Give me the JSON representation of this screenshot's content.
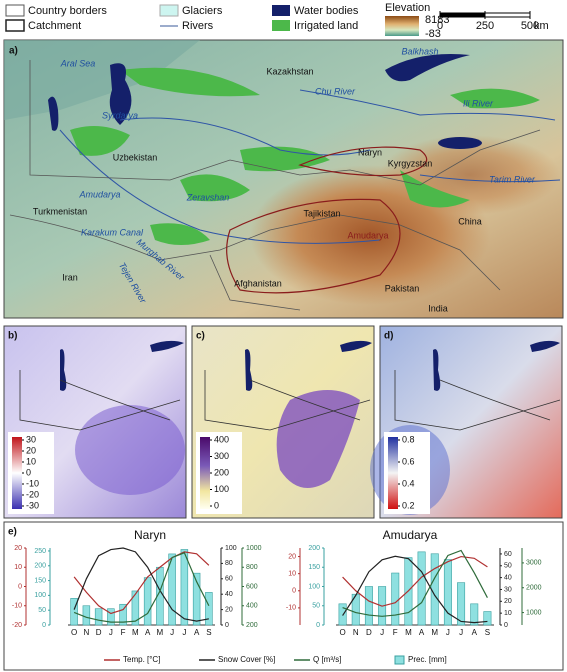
{
  "legend": {
    "items": [
      "Country borders",
      "Catchment",
      "Glaciers",
      "Rivers",
      "Water bodies",
      "Irrigated land"
    ],
    "elevation": {
      "title": "Elevation",
      "max": 8183,
      "min": -83
    },
    "scale": {
      "ticks": [
        0,
        250,
        500
      ],
      "unit": "km"
    }
  },
  "map_a": {
    "label": "a)",
    "places": [
      "Aral Sea",
      "Balkhash",
      "Kazakhstan",
      "Chu River",
      "Syrdarya",
      "Ili River",
      "Uzbekistan",
      "Naryn",
      "Kyrgyzstan",
      "Tarim River",
      "Amudarya",
      "Turkmenistan",
      "Zeravshan",
      "Tajikistan",
      "China",
      "Karakum Canal",
      "Amudarya",
      "Murghab River",
      "Tejen River",
      "Iran",
      "Afghanistan",
      "Pakistan",
      "India"
    ]
  },
  "map_b": {
    "label": "b)",
    "colorbar": [
      30,
      20,
      10,
      0,
      -10,
      -20,
      -30
    ]
  },
  "map_c": {
    "label": "c)",
    "colorbar": [
      400,
      300,
      200,
      100,
      0
    ]
  },
  "map_d": {
    "label": "d)",
    "colorbar": [
      0.8,
      0.6,
      0.4,
      0.2
    ]
  },
  "panel_e": {
    "label": "e)"
  },
  "chart_data": [
    {
      "type": "combo",
      "title": "Naryn",
      "categories": [
        "O",
        "N",
        "D",
        "J",
        "F",
        "M",
        "A",
        "M",
        "J",
        "J",
        "A",
        "S"
      ],
      "ylim": [
        -20,
        20
      ],
      "yticks": [
        -20,
        -10,
        0,
        10,
        20
      ],
      "y2lim": [
        0,
        260
      ],
      "y2ticks": [
        0,
        50,
        100,
        150,
        200,
        250
      ],
      "y3lim": [
        0,
        100
      ],
      "y3ticks": [
        0,
        20,
        40,
        60,
        80,
        100
      ],
      "y4lim": [
        200,
        1000
      ],
      "y4ticks": [
        200,
        400,
        600,
        800,
        1000
      ],
      "series": [
        {
          "name": "Temp. [°C]",
          "type": "line",
          "axis": "y",
          "color": "#b03030",
          "values": [
            5,
            -3,
            -10,
            -14,
            -12,
            -4,
            5,
            10,
            15,
            18,
            17,
            11
          ]
        },
        {
          "name": "Snow Cover [%]",
          "type": "line",
          "axis": "y3",
          "color": "#222222",
          "values": [
            20,
            60,
            90,
            98,
            100,
            95,
            75,
            45,
            20,
            8,
            5,
            8
          ]
        },
        {
          "name": "Q [m³/s]",
          "type": "line",
          "axis": "y4",
          "color": "#2f6b3a",
          "values": [
            330,
            280,
            250,
            230,
            230,
            240,
            320,
            550,
            900,
            950,
            650,
            400
          ]
        },
        {
          "name": "Prec. [mm]",
          "type": "bar",
          "axis": "y2",
          "color": "#8ee0e0",
          "values": [
            90,
            65,
            55,
            55,
            70,
            115,
            160,
            195,
            240,
            255,
            175,
            110
          ]
        }
      ]
    },
    {
      "type": "combo",
      "title": "Amudarya",
      "categories": [
        "O",
        "N",
        "D",
        "J",
        "F",
        "M",
        "A",
        "M",
        "J",
        "J",
        "A",
        "S"
      ],
      "ylim": [
        -20,
        25
      ],
      "yticks": [
        -10,
        0,
        10,
        20
      ],
      "y2lim": [
        0,
        200
      ],
      "y2ticks": [
        0,
        50,
        100,
        150,
        200
      ],
      "y3lim": [
        0,
        65
      ],
      "y3ticks": [
        0,
        10,
        20,
        30,
        40,
        50,
        60
      ],
      "y4lim": [
        500,
        3600
      ],
      "y4ticks": [
        1000,
        2000,
        3000
      ],
      "series": [
        {
          "name": "Temp. [°C]",
          "type": "line",
          "axis": "y",
          "color": "#b03030",
          "values": [
            8,
            0,
            -6,
            -9,
            -7,
            0,
            8,
            13,
            17,
            20,
            19,
            14
          ]
        },
        {
          "name": "Snow Cover [%]",
          "type": "line",
          "axis": "y3",
          "color": "#222222",
          "values": [
            8,
            25,
            45,
            55,
            58,
            56,
            45,
            25,
            10,
            3,
            2,
            3
          ]
        },
        {
          "name": "Q [m³/s]",
          "type": "line",
          "axis": "y4",
          "color": "#2f6b3a",
          "values": [
            1200,
            1000,
            900,
            850,
            900,
            1000,
            1400,
            2400,
            3300,
            3500,
            2600,
            1600
          ]
        },
        {
          "name": "Prec. [mm]",
          "type": "bar",
          "axis": "y2",
          "color": "#8ee0e0",
          "values": [
            55,
            80,
            100,
            100,
            135,
            175,
            190,
            185,
            170,
            110,
            55,
            35
          ]
        }
      ]
    }
  ]
}
